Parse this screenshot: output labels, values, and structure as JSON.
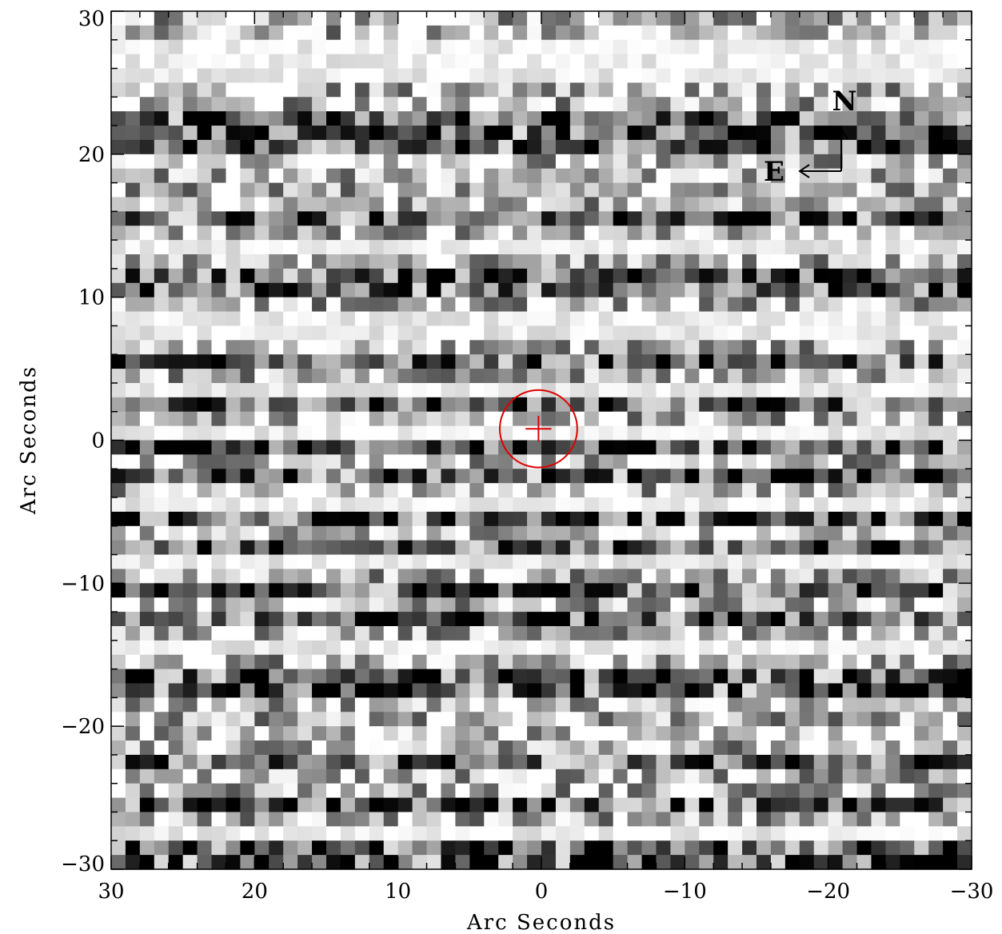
{
  "chart_data": {
    "type": "heatmap",
    "title": "",
    "xlabel": "Arc Seconds",
    "ylabel": "Arc Seconds",
    "xlim": [
      30,
      -30
    ],
    "ylim": [
      -30,
      30
    ],
    "x_ticks": [
      30,
      20,
      10,
      0,
      -10,
      -20,
      -30
    ],
    "y_ticks": [
      30,
      20,
      10,
      0,
      -10,
      -20,
      -30
    ],
    "x_tick_labels": [
      "30",
      "20",
      "10",
      "0",
      "−10",
      "−20",
      "−30"
    ],
    "y_tick_labels": [
      "30",
      "20",
      "10",
      "0",
      "−10",
      "−20",
      "−30"
    ],
    "colormap": "grayscale",
    "grid": false,
    "pixel_scale_arcsec": 1.0,
    "target_marker": {
      "x": 0.2,
      "y": 0.8,
      "radius": 2.7,
      "color": "#e00000"
    },
    "compass": {
      "north_label": "N",
      "east_label": "E",
      "placement": "top-right"
    },
    "dark_band_rows_y": [
      23,
      22,
      21,
      16,
      12,
      11,
      6,
      3,
      0,
      -2,
      -5,
      -7,
      -10,
      -12,
      -16,
      -17,
      -22,
      -25,
      -28,
      -29
    ],
    "white_band_rows_y": [
      28,
      27,
      26,
      14,
      9,
      8,
      4,
      1,
      -4,
      -8,
      -14,
      -27
    ]
  },
  "compass_north": "N",
  "compass_east": "E"
}
